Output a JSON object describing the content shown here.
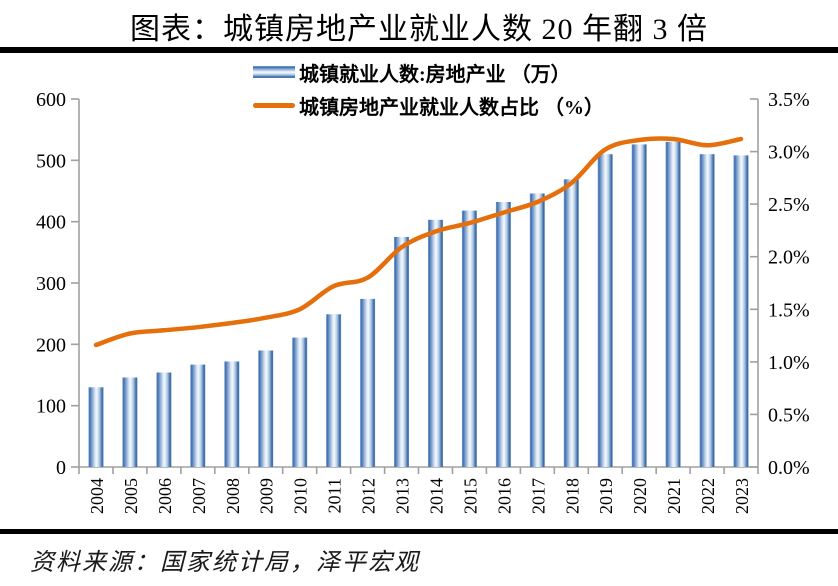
{
  "title": "图表：城镇房地产业就业人数 20 年翻 3 倍",
  "source": "资料来源：国家统计局，泽平宏观",
  "legend": [
    {
      "label": "城镇就业人数:房地产业 （万）",
      "swatch": "bar-swatch-icon"
    },
    {
      "label": "城镇房地产业就业人数占比 （%）",
      "swatch": "line-swatch-icon"
    }
  ],
  "colors": {
    "bar_dark": "#3e6eb0",
    "bar_light": "#f2f7fc",
    "line_orange": "#e56f0d",
    "axis_gray": "#a0a0a0",
    "rule_black": "#000000"
  },
  "chart_data": {
    "type": "bar",
    "title": "图表：城镇房地产业就业人数 20 年翻 3 倍",
    "categories": [
      "2004",
      "2005",
      "2006",
      "2007",
      "2008",
      "2009",
      "2010",
      "2011",
      "2012",
      "2013",
      "2014",
      "2015",
      "2016",
      "2017",
      "2018",
      "2019",
      "2020",
      "2021",
      "2022",
      "2023"
    ],
    "series": [
      {
        "name": "城镇就业人数:房地产业 （万）",
        "type": "bar",
        "axis": "left",
        "values": [
          130,
          146,
          154,
          167,
          172,
          190,
          211,
          249,
          274,
          375,
          403,
          418,
          432,
          446,
          469,
          510,
          526,
          530,
          510,
          508
        ]
      },
      {
        "name": "城镇房地产业就业人数占比 （%）",
        "type": "line",
        "axis": "right",
        "values": [
          1.16,
          1.27,
          1.3,
          1.33,
          1.37,
          1.42,
          1.5,
          1.72,
          1.8,
          2.09,
          2.24,
          2.32,
          2.42,
          2.52,
          2.7,
          3.02,
          3.11,
          3.12,
          3.06,
          3.12
        ]
      }
    ],
    "left_axis": {
      "min": 0,
      "max": 600,
      "step": 100,
      "tick_labels": [
        "0",
        "100",
        "200",
        "300",
        "400",
        "500",
        "600"
      ]
    },
    "right_axis": {
      "min": 0,
      "max": 3.5,
      "step": 0.5,
      "tick_labels": [
        "0.0%",
        "0.5%",
        "1.0%",
        "1.5%",
        "2.0%",
        "2.5%",
        "3.0%",
        "3.5%"
      ]
    },
    "grid": false,
    "legend_position": "top-center"
  }
}
